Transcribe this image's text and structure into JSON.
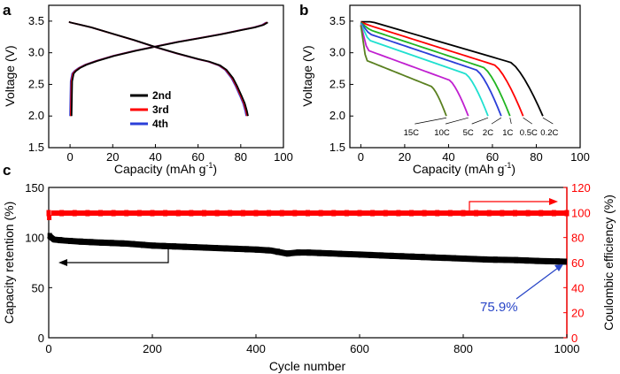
{
  "chart_data": [
    {
      "panel": "a",
      "type": "line",
      "xlabel": "Capacity (mAh g",
      "xlabel_sup": "-1",
      "xlabel_tail": ")",
      "ylabel": "Voltage (V)",
      "xlim": [
        -10,
        100
      ],
      "ylim": [
        1.5,
        3.75
      ],
      "xticks": [
        "0",
        "20",
        "40",
        "60",
        "80",
        "100"
      ],
      "xtick_values": [
        0,
        20,
        40,
        60,
        80,
        100
      ],
      "yticks": [
        "1.5",
        "2.0",
        "2.5",
        "3.0",
        "3.5"
      ],
      "ytick_values": [
        1.5,
        2.0,
        2.5,
        3.0,
        3.5
      ],
      "legend": [
        {
          "name": "2nd",
          "color": "#000000"
        },
        {
          "name": "3rd",
          "color": "#ff0000"
        },
        {
          "name": "4th",
          "color": "#2b3fd8"
        }
      ],
      "charge_curve": {
        "x": [
          0,
          0.3,
          1,
          2,
          4,
          7,
          12,
          20,
          30,
          40,
          50,
          60,
          70,
          80,
          86,
          90,
          92
        ],
        "y": [
          2.0,
          2.55,
          2.67,
          2.71,
          2.76,
          2.81,
          2.87,
          2.95,
          3.03,
          3.1,
          3.17,
          3.23,
          3.29,
          3.36,
          3.4,
          3.44,
          3.48
        ]
      },
      "discharge_curve": {
        "x": [
          -0.5,
          0,
          5,
          10,
          20,
          30,
          40,
          50,
          60,
          65,
          70,
          73,
          76,
          78,
          80,
          81.5,
          82.5,
          83
        ],
        "y": [
          3.49,
          3.48,
          3.44,
          3.4,
          3.3,
          3.2,
          3.09,
          2.99,
          2.9,
          2.86,
          2.8,
          2.73,
          2.6,
          2.47,
          2.32,
          2.2,
          2.08,
          2.0
        ]
      },
      "end_capacity": {
        "2nd": 83.4,
        "3rd": 83.0,
        "4th": 82.6
      }
    },
    {
      "panel": "b",
      "type": "line",
      "xlabel": "Capacity (mAh g",
      "xlabel_sup": "-1",
      "xlabel_tail": ")",
      "ylabel": "Voltage (V)",
      "xlim": [
        -5,
        100
      ],
      "ylim": [
        1.5,
        3.75
      ],
      "xticks": [
        "0",
        "20",
        "40",
        "60",
        "80",
        "100"
      ],
      "xtick_values": [
        0,
        20,
        40,
        60,
        80,
        100
      ],
      "yticks": [
        "1.5",
        "2.0",
        "2.5",
        "3.0",
        "3.5"
      ],
      "ytick_values": [
        1.5,
        2.0,
        2.5,
        3.0,
        3.5
      ],
      "series": [
        {
          "name": "0.2C",
          "color": "#000000",
          "start_v": 3.49,
          "end_capacity": 83,
          "label_x": 86,
          "label_y": 1.75
        },
        {
          "name": "0.5C",
          "color": "#ff0000",
          "start_v": 3.47,
          "end_capacity": 74,
          "label_x": 76.5,
          "label_y": 1.75
        },
        {
          "name": "1C",
          "color": "#21b521",
          "start_v": 3.45,
          "end_capacity": 68,
          "label_x": 67,
          "label_y": 1.75
        },
        {
          "name": "2C",
          "color": "#2b3fd8",
          "start_v": 3.43,
          "end_capacity": 64,
          "label_x": 58,
          "label_y": 1.75
        },
        {
          "name": "5C",
          "color": "#20e0d0",
          "start_v": 3.4,
          "end_capacity": 58,
          "label_x": 49,
          "label_y": 1.75
        },
        {
          "name": "10C",
          "color": "#c020d0",
          "start_v": 3.35,
          "end_capacity": 49,
          "label_x": 37,
          "label_y": 1.75
        },
        {
          "name": "15C",
          "color": "#5a8020",
          "start_v": 3.3,
          "end_capacity": 39,
          "label_x": 23,
          "label_y": 1.75
        }
      ]
    },
    {
      "panel": "c",
      "type": "scatter",
      "xlabel": "Cycle number",
      "ylabel_left": "Capacity retention (%)",
      "ylabel_right": "Coulombic efficiency (%)",
      "xlim": [
        0,
        1000
      ],
      "ylim_left": [
        0,
        150
      ],
      "ylim_right": [
        0,
        120
      ],
      "xticks": [
        "0",
        "200",
        "400",
        "600",
        "800",
        "1000"
      ],
      "xtick_values": [
        0,
        200,
        400,
        600,
        800,
        1000
      ],
      "yticks_left": [
        "0",
        "50",
        "100",
        "150"
      ],
      "ytick_values_left": [
        0,
        50,
        100,
        150
      ],
      "yticks_right": [
        "0",
        "20",
        "40",
        "60",
        "80",
        "100",
        "120"
      ],
      "ytick_values_right": [
        0,
        20,
        40,
        60,
        80,
        100,
        120
      ],
      "retention": {
        "x": [
          1,
          5,
          10,
          30,
          60,
          100,
          150,
          200,
          250,
          300,
          350,
          400,
          430,
          460,
          480,
          500,
          550,
          600,
          650,
          700,
          750,
          800,
          850,
          900,
          950,
          1000
        ],
        "y": [
          102,
          100,
          98,
          97,
          96,
          95,
          94,
          92,
          91,
          90,
          89,
          88,
          87,
          84,
          85,
          85,
          84,
          83,
          82,
          81,
          80,
          79,
          78,
          77.5,
          76.5,
          75.9
        ]
      },
      "efficiency": {
        "value": 99.5,
        "first_cycle": 96
      },
      "annotation": "75.9%"
    }
  ],
  "panel_labels": {
    "a": "a",
    "b": "b",
    "c": "c"
  }
}
